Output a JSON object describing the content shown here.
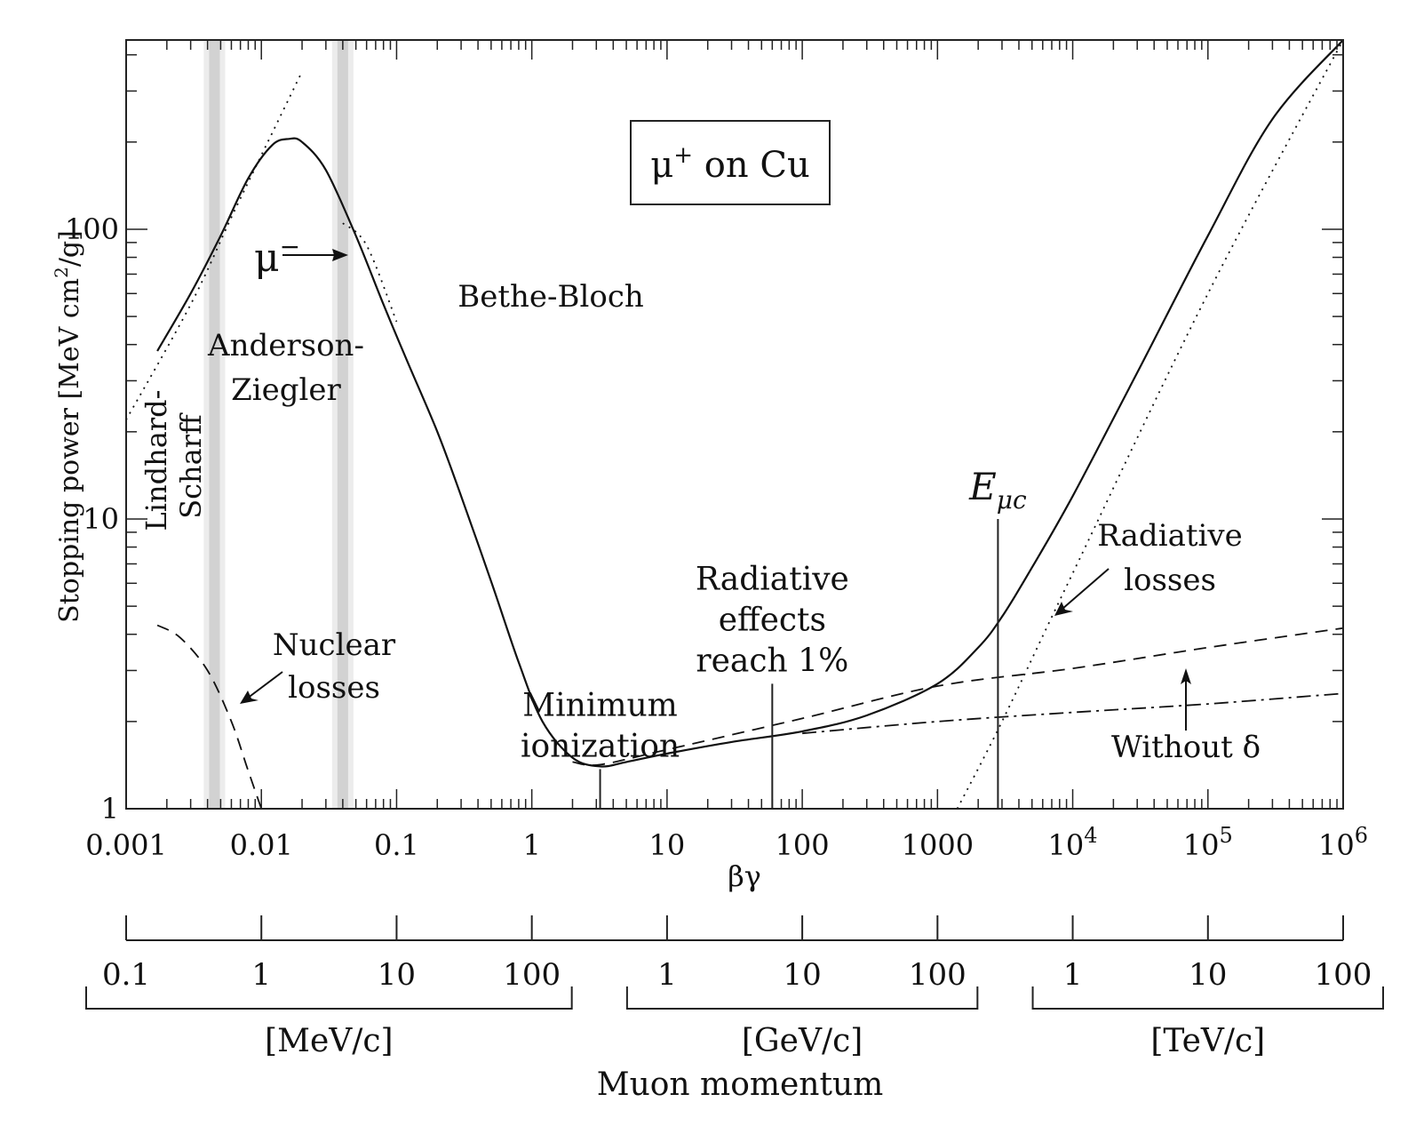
{
  "chart_data": {
    "type": "line",
    "title": "μ⁺ on Cu",
    "title_parts": {
      "base": "μ",
      "sup": "+",
      "rest": " on Cu"
    },
    "xlabel": "βγ",
    "ylabel": "Stopping power [MeV cm²/g]",
    "ylabel_parts": {
      "base": "Stopping power [MeV cm",
      "sup": "2",
      "rest": "/g]"
    },
    "x_scale": "log",
    "y_scale": "log",
    "xlim": [
      0.001,
      1000000
    ],
    "ylim": [
      1,
      450
    ],
    "x_ticks": [
      {
        "value": 0.001,
        "base": "0.001",
        "sup": ""
      },
      {
        "value": 0.01,
        "base": "0.01",
        "sup": ""
      },
      {
        "value": 0.1,
        "base": "0.1",
        "sup": ""
      },
      {
        "value": 1,
        "base": "1",
        "sup": ""
      },
      {
        "value": 10,
        "base": "10",
        "sup": ""
      },
      {
        "value": 100,
        "base": "100",
        "sup": ""
      },
      {
        "value": 1000,
        "base": "1000",
        "sup": ""
      },
      {
        "value": 10000,
        "base": "10",
        "sup": "4"
      },
      {
        "value": 100000,
        "base": "10",
        "sup": "5"
      },
      {
        "value": 1000000,
        "base": "10",
        "sup": "6"
      }
    ],
    "y_ticks": [
      {
        "value": 1,
        "label": "1"
      },
      {
        "value": 10,
        "label": "10"
      },
      {
        "value": 100,
        "label": "100"
      }
    ],
    "shaded_bands": [
      0.0045,
      0.04
    ],
    "series": [
      {
        "style": "solid",
        "role": "total stopping power",
        "x": [
          0.0017,
          0.003,
          0.005,
          0.008,
          0.012,
          0.016,
          0.02,
          0.03,
          0.05,
          0.08,
          0.12,
          0.2,
          0.3,
          0.5,
          0.8,
          1.2,
          2,
          3.2,
          5,
          10,
          30,
          100,
          300,
          1000,
          2000,
          3000,
          5000,
          10000,
          30000,
          100000,
          300000,
          1000000
        ],
        "y": [
          38,
          60,
          95,
          150,
          195,
          205,
          200,
          160,
          95,
          55,
          35,
          20,
          12,
          6.1,
          3.2,
          2.0,
          1.5,
          1.4,
          1.45,
          1.55,
          1.7,
          1.85,
          2.1,
          2.7,
          3.6,
          4.6,
          6.8,
          12,
          32,
          95,
          240,
          450
        ]
      },
      {
        "style": "dashed",
        "role": "without radiative losses",
        "x": [
          2,
          3.2,
          10,
          100,
          1000,
          10000,
          100000,
          1000000
        ],
        "y": [
          1.45,
          1.42,
          1.6,
          2.05,
          2.65,
          3.05,
          3.6,
          4.2
        ]
      },
      {
        "style": "dashdot",
        "role": "without δ",
        "x": [
          100,
          1000,
          10000,
          100000,
          1000000
        ],
        "y": [
          1.82,
          2.0,
          2.15,
          2.3,
          2.5
        ]
      },
      {
        "style": "dotted",
        "role": "radiative losses",
        "x": [
          1400,
          3000,
          10000,
          100000,
          1000000
        ],
        "y": [
          1.0,
          2.0,
          6.5,
          60,
          450
        ]
      },
      {
        "style": "dotted",
        "role": "Lindhard-Scharff",
        "x": [
          0.001,
          0.003,
          0.006,
          0.01,
          0.02
        ],
        "y": [
          22,
          55,
          110,
          180,
          350
        ]
      },
      {
        "style": "dotted",
        "role": "μ⁻",
        "x": [
          0.04,
          0.06,
          0.1
        ],
        "y": [
          105,
          88,
          48
        ]
      },
      {
        "style": "dashed",
        "role": "nuclear losses",
        "x": [
          0.0017,
          0.0025,
          0.004,
          0.006,
          0.008,
          0.01
        ],
        "y": [
          4.3,
          3.9,
          3.0,
          2.0,
          1.35,
          1.0
        ]
      }
    ],
    "vertical_markers": [
      {
        "x": 3.2,
        "y_top": 1.37,
        "label": [
          "Minimum",
          "ionization"
        ]
      },
      {
        "x": 60,
        "y_top": 2.7,
        "label": [
          "Radiative",
          "effects",
          "reach 1%"
        ]
      },
      {
        "x": 2800,
        "y_top": 10,
        "label_base": "E",
        "label_sub": "μc"
      }
    ],
    "annotations": {
      "bethe_bloch": "Bethe-Bloch",
      "anderson_ziegler": [
        "Anderson-",
        "Ziegler"
      ],
      "lindhard_scharff": [
        "Lindhard-",
        "Scharff"
      ],
      "mu_minus": {
        "base": "μ",
        "sup": "−"
      },
      "nuclear_losses": [
        "Nuclear",
        "losses"
      ],
      "radiative_losses": [
        "Radiative",
        "losses"
      ],
      "without_delta": "Without δ"
    },
    "momentum_axis": {
      "title": "Muon momentum",
      "groups": [
        {
          "unit": "[MeV/c]",
          "ticks": [
            {
              "label": "0.1",
              "bg": 0.001
            },
            {
              "label": "1",
              "bg": 0.01
            },
            {
              "label": "10",
              "bg": 0.1
            },
            {
              "label": "100",
              "bg": 1
            }
          ]
        },
        {
          "unit": "[GeV/c]",
          "ticks": [
            {
              "label": "1",
              "bg": 10
            },
            {
              "label": "10",
              "bg": 100
            },
            {
              "label": "100",
              "bg": 1000
            }
          ]
        },
        {
          "unit": "[TeV/c]",
          "ticks": [
            {
              "label": "1",
              "bg": 10000
            },
            {
              "label": "10",
              "bg": 100000
            },
            {
              "label": "100",
              "bg": 1000000
            }
          ]
        }
      ]
    }
  }
}
